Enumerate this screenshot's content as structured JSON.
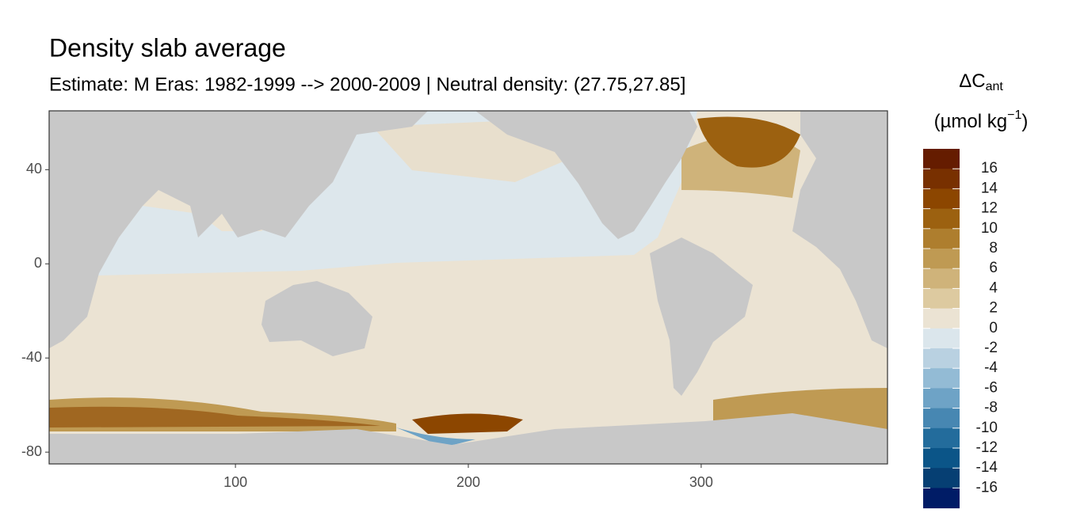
{
  "chart_data": {
    "type": "raster-map",
    "title": "Density slab average",
    "subtitle": "Estimate: M Eras: 1982-1999 --> 2000-2009 | Neutral density: (27.75,27.85]",
    "xlim": [
      20,
      380
    ],
    "xticks": [
      100,
      200,
      300
    ],
    "ylim": [
      -85,
      65
    ],
    "yticks": [
      40,
      0,
      -40,
      -80
    ],
    "legend": {
      "title_main": "ΔC",
      "title_sub": "ant",
      "title_unit": "(µmol kg",
      "title_sup": "−1",
      "title_close": ")",
      "breaks": [
        16,
        14,
        12,
        10,
        8,
        6,
        4,
        2,
        0,
        -2,
        -4,
        -6,
        -8,
        -10,
        -12,
        -14,
        -16
      ],
      "colors": [
        "#651c00",
        "#783000",
        "#8c4600",
        "#9c6110",
        "#ae7e2e",
        "#bf9a53",
        "#cfb37a",
        "#ddcaa0",
        "#ebe3d3",
        "#dbe6ec",
        "#b9d1e1",
        "#93bbd5",
        "#6ea3c6",
        "#4787b2",
        "#236c9c",
        "#0b5588",
        "#063f73",
        "#001c66"
      ]
    }
  }
}
